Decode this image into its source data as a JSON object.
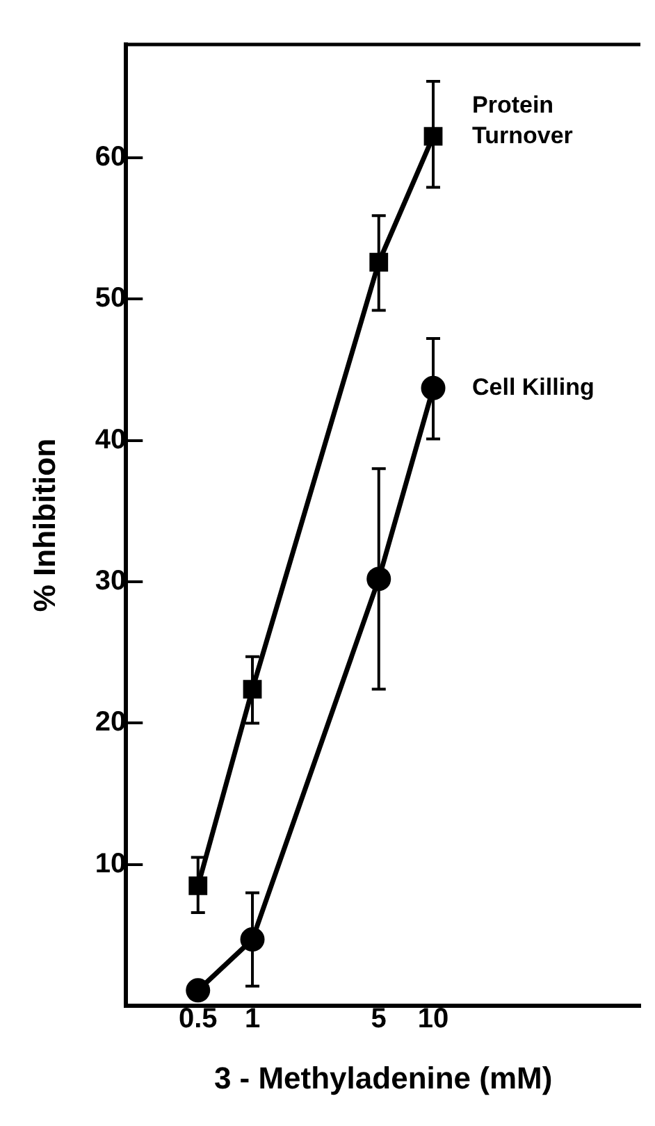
{
  "chart_data": {
    "type": "line",
    "xlabel": "3 - Methyladenine (mM)",
    "ylabel": "% Inhibition",
    "log": "x",
    "xlim": [
      0.2,
      140
    ],
    "xticks": [
      0.5,
      1,
      5,
      10
    ],
    "ylim": [
      0,
      68
    ],
    "yticks": [
      10,
      20,
      30,
      40,
      50,
      60
    ],
    "grid": false,
    "legend": false,
    "line_style": "solid",
    "series": [
      {
        "name": "Protein Turnover",
        "color": "#000000",
        "marker": "square",
        "x": [
          0.5,
          1,
          5,
          10
        ],
        "values": [
          8.5,
          22.4,
          52.6,
          61.5
        ],
        "errors": [
          [
            6.6,
            10.5
          ],
          [
            20.0,
            24.7
          ],
          [
            49.2,
            55.9
          ],
          [
            57.9,
            65.4
          ]
        ]
      },
      {
        "name": "Cell Killing",
        "color": "#000000",
        "marker": "circle",
        "x": [
          0.5,
          1,
          5,
          10
        ],
        "values": [
          1.1,
          4.7,
          30.2,
          43.7
        ],
        "errors": [
          null,
          [
            1.4,
            8.0
          ],
          [
            22.4,
            38.0
          ],
          [
            40.1,
            47.2
          ]
        ]
      }
    ]
  }
}
